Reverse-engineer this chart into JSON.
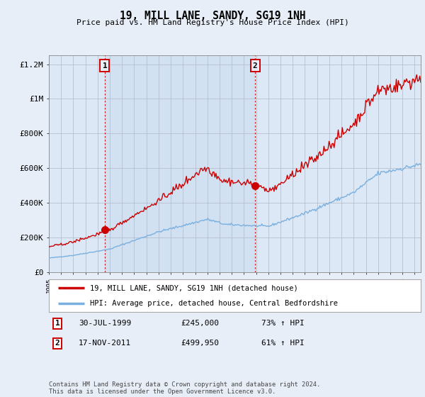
{
  "title": "19, MILL LANE, SANDY, SG19 1NH",
  "subtitle": "Price paid vs. HM Land Registry's House Price Index (HPI)",
  "hpi_label": "HPI: Average price, detached house, Central Bedfordshire",
  "price_label": "19, MILL LANE, SANDY, SG19 1NH (detached house)",
  "sale1_date": "30-JUL-1999",
  "sale1_price": 245000,
  "sale1_hpi_pct": "73% ↑ HPI",
  "sale2_date": "17-NOV-2011",
  "sale2_price": 499950,
  "sale2_hpi_pct": "61% ↑ HPI",
  "footnote": "Contains HM Land Registry data © Crown copyright and database right 2024.\nThis data is licensed under the Open Government Licence v3.0.",
  "ylim_max": 1250000,
  "ylim_min": 0,
  "xmin": 1995,
  "xmax": 2025.5,
  "background_color": "#e8eef8",
  "plot_bg_color": "#dce8f5",
  "hpi_line_color": "#7ab0e0",
  "price_line_color": "#cc0000",
  "sale_marker_color": "#cc0000",
  "grid_color": "#b0b8c8",
  "sale1_year": 1999.583,
  "sale2_year": 2011.917,
  "yticks": [
    0,
    200000,
    400000,
    600000,
    800000,
    1000000,
    1200000
  ],
  "ytick_labels": [
    "£0",
    "£200K",
    "£400K",
    "£600K",
    "£800K",
    "£1M",
    "£1.2M"
  ]
}
